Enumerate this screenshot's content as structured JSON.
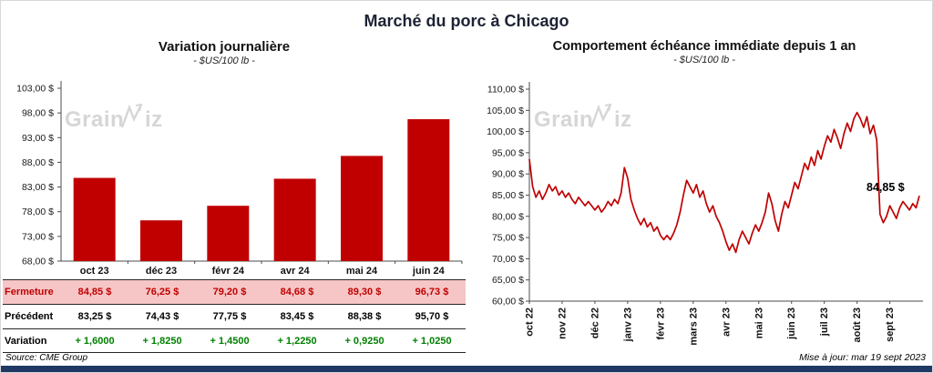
{
  "page_title": "Marché du porc à Chicago",
  "watermark": {
    "prefix": "Grain",
    "suffix": "iz"
  },
  "footer": {
    "source": "Source: CME Group",
    "updated": "Mise à jour: mar 19 sept 2023"
  },
  "colors": {
    "accent_red": "#C00000",
    "row_highlight": "#F6C6C6",
    "positive_green": "#008000",
    "bottom_bar": "#1F3864",
    "watermark": "#D6D6D6"
  },
  "chart_data": [
    {
      "type": "bar",
      "title": "Variation journalière",
      "subtitle": "- $US/100 lb -",
      "categories": [
        "oct 23",
        "déc 23",
        "févr 24",
        "avr 24",
        "mai 24",
        "juin 24"
      ],
      "values": [
        84.85,
        76.25,
        79.2,
        84.68,
        89.3,
        96.73
      ],
      "ylim": [
        68,
        103
      ],
      "ytick_step": 5,
      "ytick_labels": [
        "68,00 $",
        "73,00 $",
        "78,00 $",
        "83,00 $",
        "88,00 $",
        "93,00 $",
        "98,00 $",
        "103,00 $"
      ],
      "bar_color": "#C00000",
      "grid": false,
      "table": {
        "rows": [
          {
            "label": "Fermeture",
            "values": [
              "84,85 $",
              "76,25 $",
              "79,20 $",
              "84,68 $",
              "89,30 $",
              "96,73 $"
            ],
            "bg": "#F6C6C6",
            "label_color": "#C00000",
            "value_color": "#C00000"
          },
          {
            "label": "Précédent",
            "values": [
              "83,25 $",
              "74,43 $",
              "77,75 $",
              "83,45 $",
              "88,38 $",
              "95,70 $"
            ],
            "bg": "#FFFFFF",
            "label_color": "#000000",
            "value_color": "#000000"
          },
          {
            "label": "Variation",
            "values": [
              "+ 1,6000",
              "+ 1,8250",
              "+ 1,4500",
              "+ 1,2250",
              "+ 0,9250",
              "+ 1,0250"
            ],
            "bg": "#FFFFFF",
            "label_color": "#000000",
            "value_color": "#008000"
          }
        ]
      }
    },
    {
      "type": "line",
      "title": "Comportement échéance immédiate depuis 1 an",
      "subtitle": "- $US/100 lb -",
      "x_tick_labels": [
        "oct 22",
        "nov 22",
        "déc 22",
        "janv 23",
        "févr 23",
        "mars 23",
        "avr 23",
        "mai 23",
        "juin 23",
        "juil 23",
        "août 23",
        "sept 23"
      ],
      "ylim": [
        60,
        110
      ],
      "ytick_step": 5,
      "ytick_labels": [
        "60,00 $",
        "65,00 $",
        "70,00 $",
        "75,00 $",
        "80,00 $",
        "85,00 $",
        "90,00 $",
        "95,00 $",
        "100,00 $",
        "105,00 $",
        "110,00 $"
      ],
      "line_color": "#C00000",
      "annotation": {
        "text": "84,85 $",
        "value": 84.85
      },
      "values": [
        93.5,
        87.0,
        84.5,
        86.0,
        84.0,
        85.5,
        87.5,
        86.0,
        87.0,
        85.0,
        86.0,
        84.5,
        85.5,
        84.0,
        83.0,
        84.5,
        83.5,
        82.5,
        83.5,
        82.5,
        81.5,
        82.5,
        81.0,
        82.0,
        83.5,
        82.5,
        84.0,
        83.0,
        85.5,
        91.5,
        89.0,
        84.0,
        81.5,
        79.5,
        78.0,
        79.5,
        77.5,
        78.5,
        76.5,
        77.5,
        75.5,
        74.5,
        75.5,
        74.5,
        76.0,
        78.0,
        81.0,
        85.0,
        88.5,
        87.0,
        85.5,
        87.5,
        84.5,
        86.0,
        83.0,
        81.0,
        82.5,
        80.0,
        78.5,
        76.5,
        74.0,
        72.0,
        73.5,
        71.5,
        74.5,
        76.5,
        75.0,
        73.5,
        76.0,
        78.0,
        76.5,
        78.5,
        81.0,
        85.5,
        83.0,
        79.0,
        76.5,
        80.5,
        83.5,
        82.0,
        85.0,
        88.0,
        86.5,
        89.5,
        92.5,
        91.0,
        94.0,
        92.0,
        95.5,
        93.5,
        96.5,
        99.0,
        97.5,
        100.5,
        98.5,
        96.0,
        99.5,
        102.0,
        100.0,
        103.0,
        104.5,
        103.0,
        101.0,
        103.5,
        99.5,
        101.5,
        98.0,
        80.5,
        78.5,
        80.0,
        82.5,
        81.0,
        79.5,
        82.0,
        83.5,
        82.5,
        81.5,
        83.0,
        82.0,
        84.85
      ]
    }
  ]
}
